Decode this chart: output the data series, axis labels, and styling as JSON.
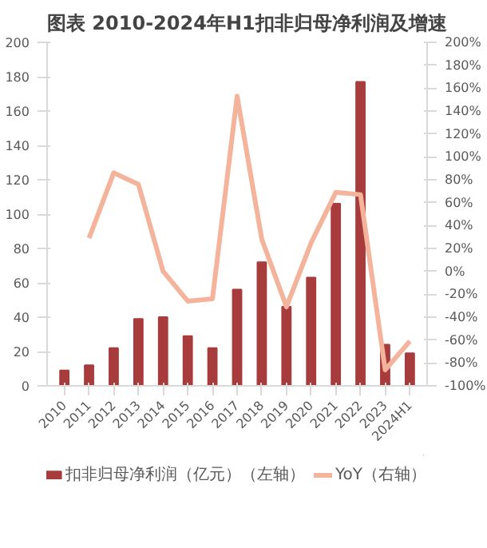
{
  "chart_data": {
    "type": "bar",
    "title": "图表 2010-2024年H1扣非归母净利润及增速",
    "categories": [
      "2010",
      "2011",
      "2012",
      "2013",
      "2014",
      "2015",
      "2016",
      "2017",
      "2018",
      "2019",
      "2020",
      "2021",
      "2022",
      "2023",
      "2024H1"
    ],
    "series": [
      {
        "name": "扣非归母净利润（亿元）（左轴）",
        "color": "#a83c3c",
        "values": [
          9,
          12,
          22,
          39,
          40,
          29,
          22,
          56,
          72,
          46,
          63,
          106,
          177,
          24,
          19
        ]
      },
      {
        "name": "YoY（右轴）",
        "type": "line",
        "axis": "y2",
        "color": "#f4b49c",
        "values": [
          null,
          29,
          86,
          76,
          0,
          -26,
          -24,
          153,
          28,
          -31,
          25,
          69,
          67,
          -86,
          -61
        ]
      }
    ],
    "ylim": [
      0,
      200
    ],
    "yticks": [
      0,
      20,
      40,
      60,
      80,
      100,
      120,
      140,
      160,
      180,
      200
    ],
    "y2lim": [
      -100,
      200
    ],
    "y2ticks": [
      {
        "value": -100,
        "label": "-100%"
      },
      {
        "value": -80,
        "label": "-80%"
      },
      {
        "value": -60,
        "label": "-60%"
      },
      {
        "value": -40,
        "label": "-40%"
      },
      {
        "value": -20,
        "label": "-20%"
      },
      {
        "value": 0,
        "label": "0%"
      },
      {
        "value": 20,
        "label": "20%"
      },
      {
        "value": 40,
        "label": "40%"
      },
      {
        "value": 60,
        "label": "60%"
      },
      {
        "value": 80,
        "label": "80%"
      },
      {
        "value": 100,
        "label": "100%"
      },
      {
        "value": 120,
        "label": "120%"
      },
      {
        "value": 140,
        "label": "140%"
      },
      {
        "value": 160,
        "label": "160%"
      },
      {
        "value": 180,
        "label": "180%"
      },
      {
        "value": 200,
        "label": "200%"
      }
    ],
    "grid": false,
    "legend": "bottom",
    "marker": "none"
  }
}
